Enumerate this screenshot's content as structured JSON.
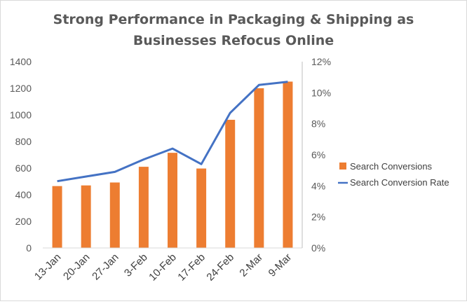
{
  "chart_data": {
    "type": "bar",
    "title": [
      "Strong Performance in Packaging & Shipping as",
      "Businesses Refocus Online"
    ],
    "categories": [
      "13-Jan",
      "20-Jan",
      "27-Jan",
      "3-Feb",
      "10-Feb",
      "17-Feb",
      "24-Feb",
      "2-Mar",
      "9-Mar"
    ],
    "series": [
      {
        "name": "Search Conversions",
        "type": "bar",
        "axis": "left",
        "color": "#ED7D31",
        "values": [
          465,
          470,
          492,
          610,
          715,
          597,
          963,
          1200,
          1250
        ]
      },
      {
        "name": "Search Conversion Rate",
        "type": "line",
        "axis": "right",
        "color": "#4472C4",
        "values": [
          4.3,
          4.6,
          4.9,
          5.7,
          6.4,
          5.4,
          8.7,
          10.5,
          10.7
        ]
      }
    ],
    "y_left": {
      "min": 0,
      "max": 1400,
      "ticks": [
        "0",
        "200",
        "400",
        "600",
        "800",
        "1000",
        "1200",
        "1400"
      ]
    },
    "y_right": {
      "min": 0,
      "max": 12,
      "unit": "%",
      "ticks": [
        "0%",
        "2%",
        "4%",
        "6%",
        "8%",
        "10%",
        "12%"
      ]
    },
    "grid": false,
    "legend_position": "right"
  }
}
